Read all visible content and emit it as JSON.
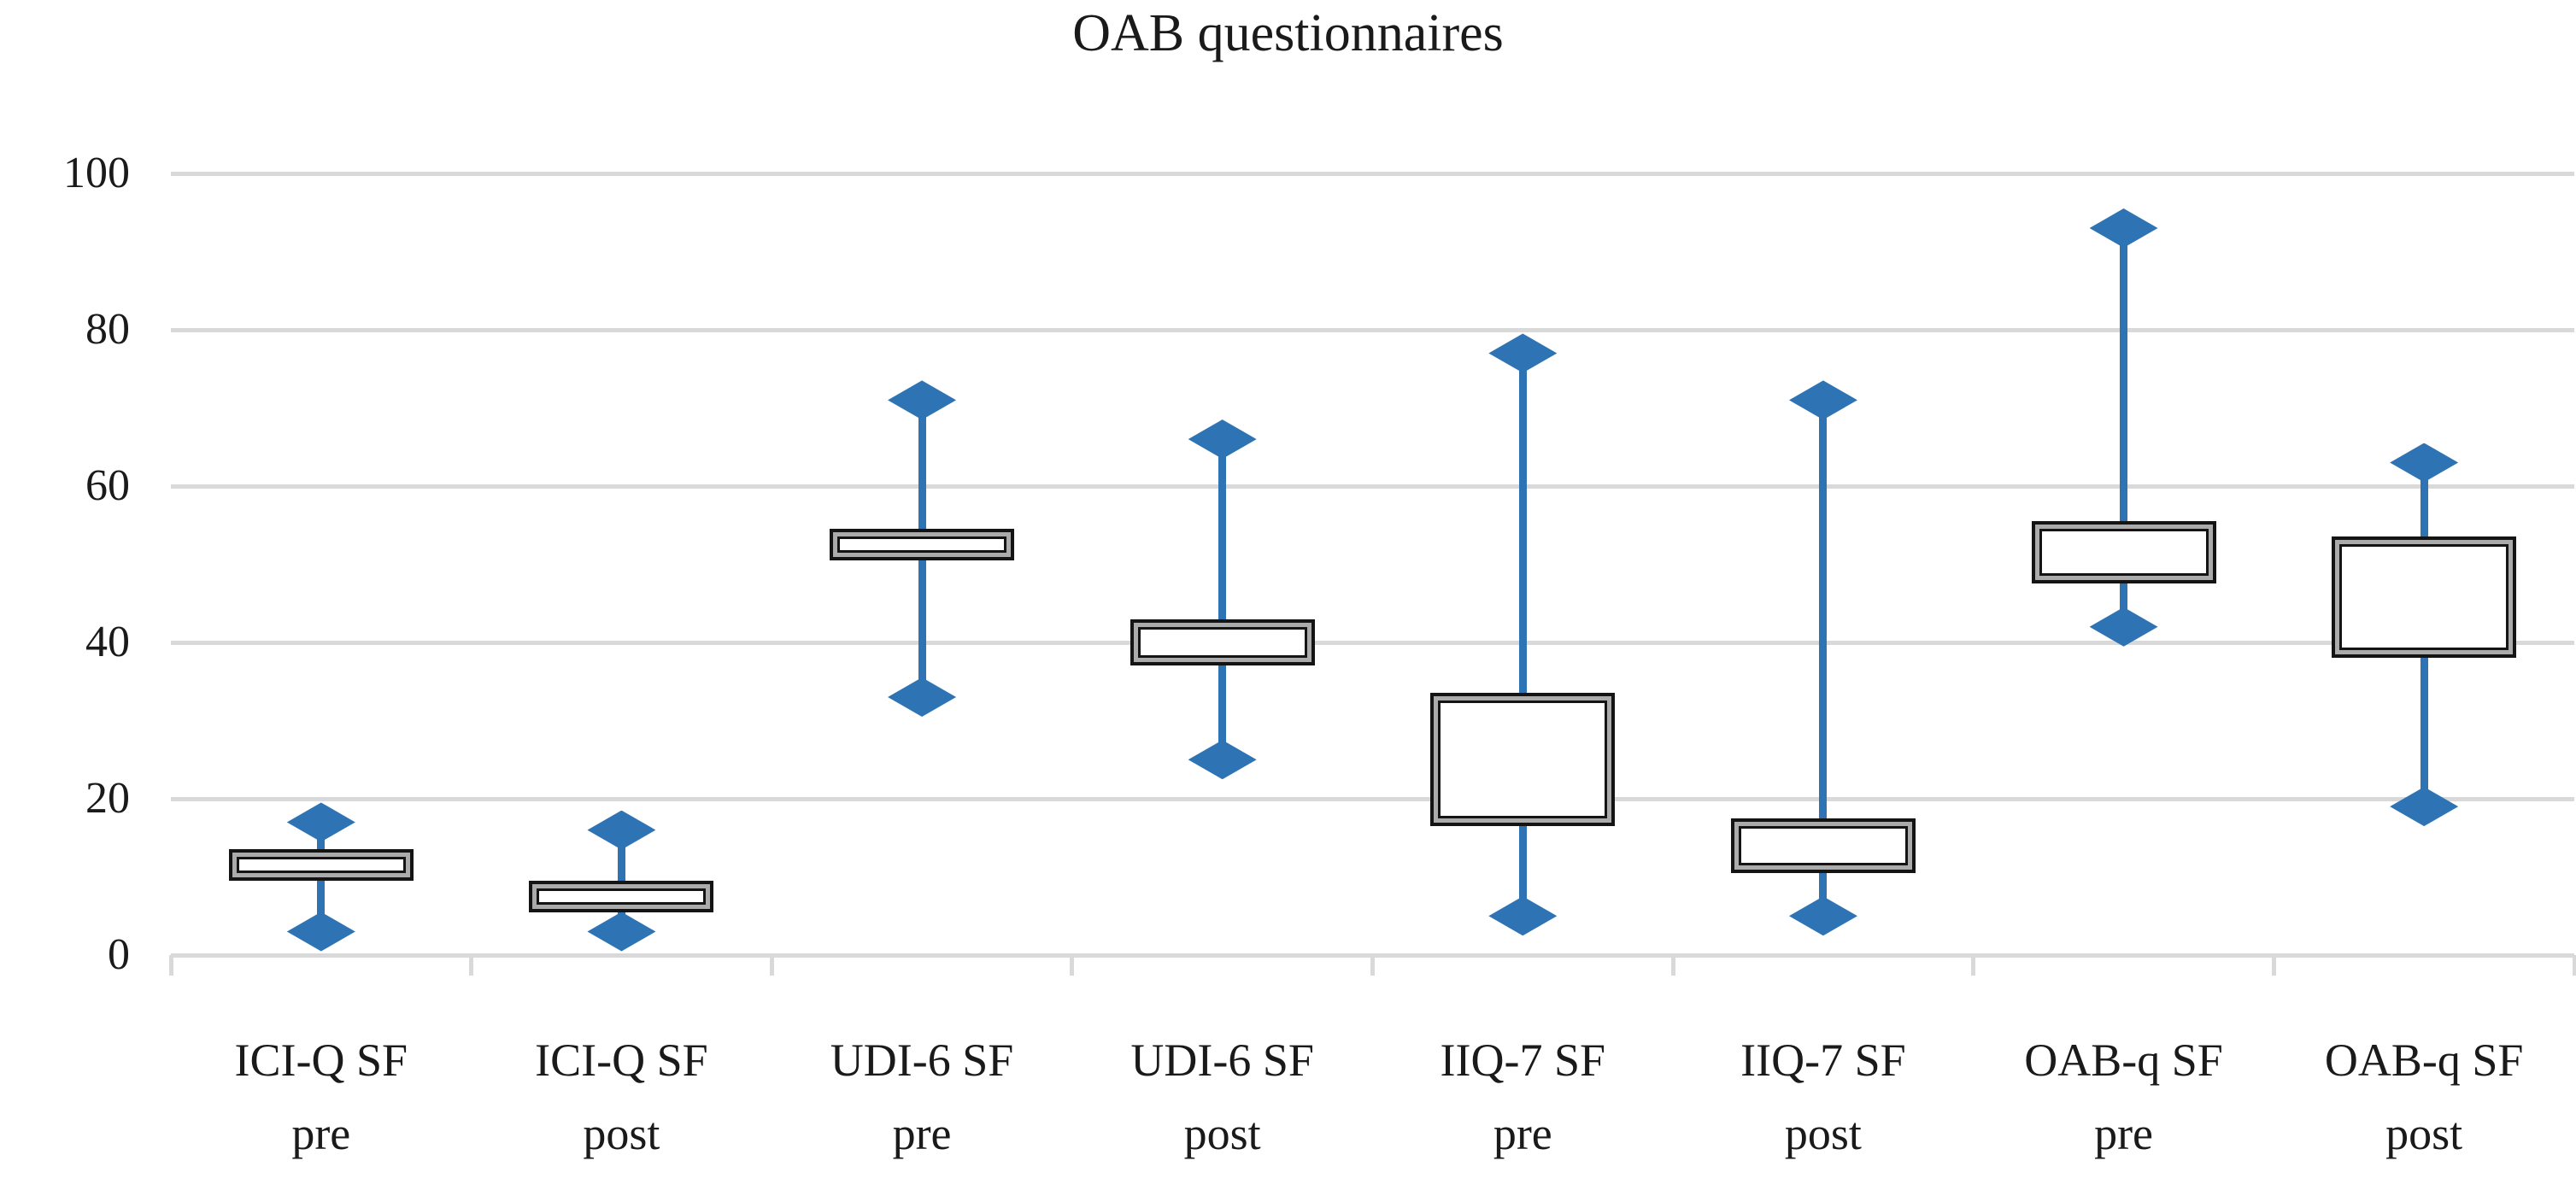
{
  "title": "OAB questionnaires",
  "chart_data": {
    "type": "boxplot",
    "title": "OAB questionnaires",
    "xlabel": "",
    "ylabel": "",
    "ylim": [
      0,
      100
    ],
    "yticks": [
      0,
      20,
      40,
      60,
      80,
      100
    ],
    "grid": true,
    "legend": "none",
    "marker": "diamond",
    "categories": [
      "ICI-Q SF pre",
      "ICI-Q SF post",
      "UDI-6 SF pre",
      "UDI-6 SF post",
      "IIQ-7 SF pre",
      "IIQ-7 SF post",
      "OAB-q SF pre",
      "OAB-q SF post"
    ],
    "series": [
      {
        "label": "ICI-Q SF",
        "phase": "pre",
        "whisker_low": 3,
        "q1": 9.5,
        "q3": 13.5,
        "whisker_high": 17
      },
      {
        "label": "ICI-Q SF",
        "phase": "post",
        "whisker_low": 3,
        "q1": 5.5,
        "q3": 9.5,
        "whisker_high": 16
      },
      {
        "label": "UDI-6 SF",
        "phase": "pre",
        "whisker_low": 33,
        "q1": 50.5,
        "q3": 54.5,
        "whisker_high": 71
      },
      {
        "label": "UDI-6 SF",
        "phase": "post",
        "whisker_low": 25,
        "q1": 37,
        "q3": 43,
        "whisker_high": 66
      },
      {
        "label": "IIQ-7 SF",
        "phase": "pre",
        "whisker_low": 5,
        "q1": 16.5,
        "q3": 33.5,
        "whisker_high": 77
      },
      {
        "label": "IIQ-7 SF",
        "phase": "post",
        "whisker_low": 5,
        "q1": 10.5,
        "q3": 17.5,
        "whisker_high": 71
      },
      {
        "label": "OAB-q SF",
        "phase": "pre",
        "whisker_low": 42,
        "q1": 47.5,
        "q3": 55.5,
        "whisker_high": 93
      },
      {
        "label": "OAB-q SF",
        "phase": "post",
        "whisker_low": 19,
        "q1": 38,
        "q3": 53.5,
        "whisker_high": 63
      }
    ],
    "colors": {
      "marker_blue": "#2E74B5",
      "gridline_gray": "#D9D9D9",
      "box_border_black": "#141414",
      "box_ring_gray": "#ABABAB",
      "box_fill_white": "#FFFFFF",
      "text_black": "#1A1A1A"
    }
  }
}
